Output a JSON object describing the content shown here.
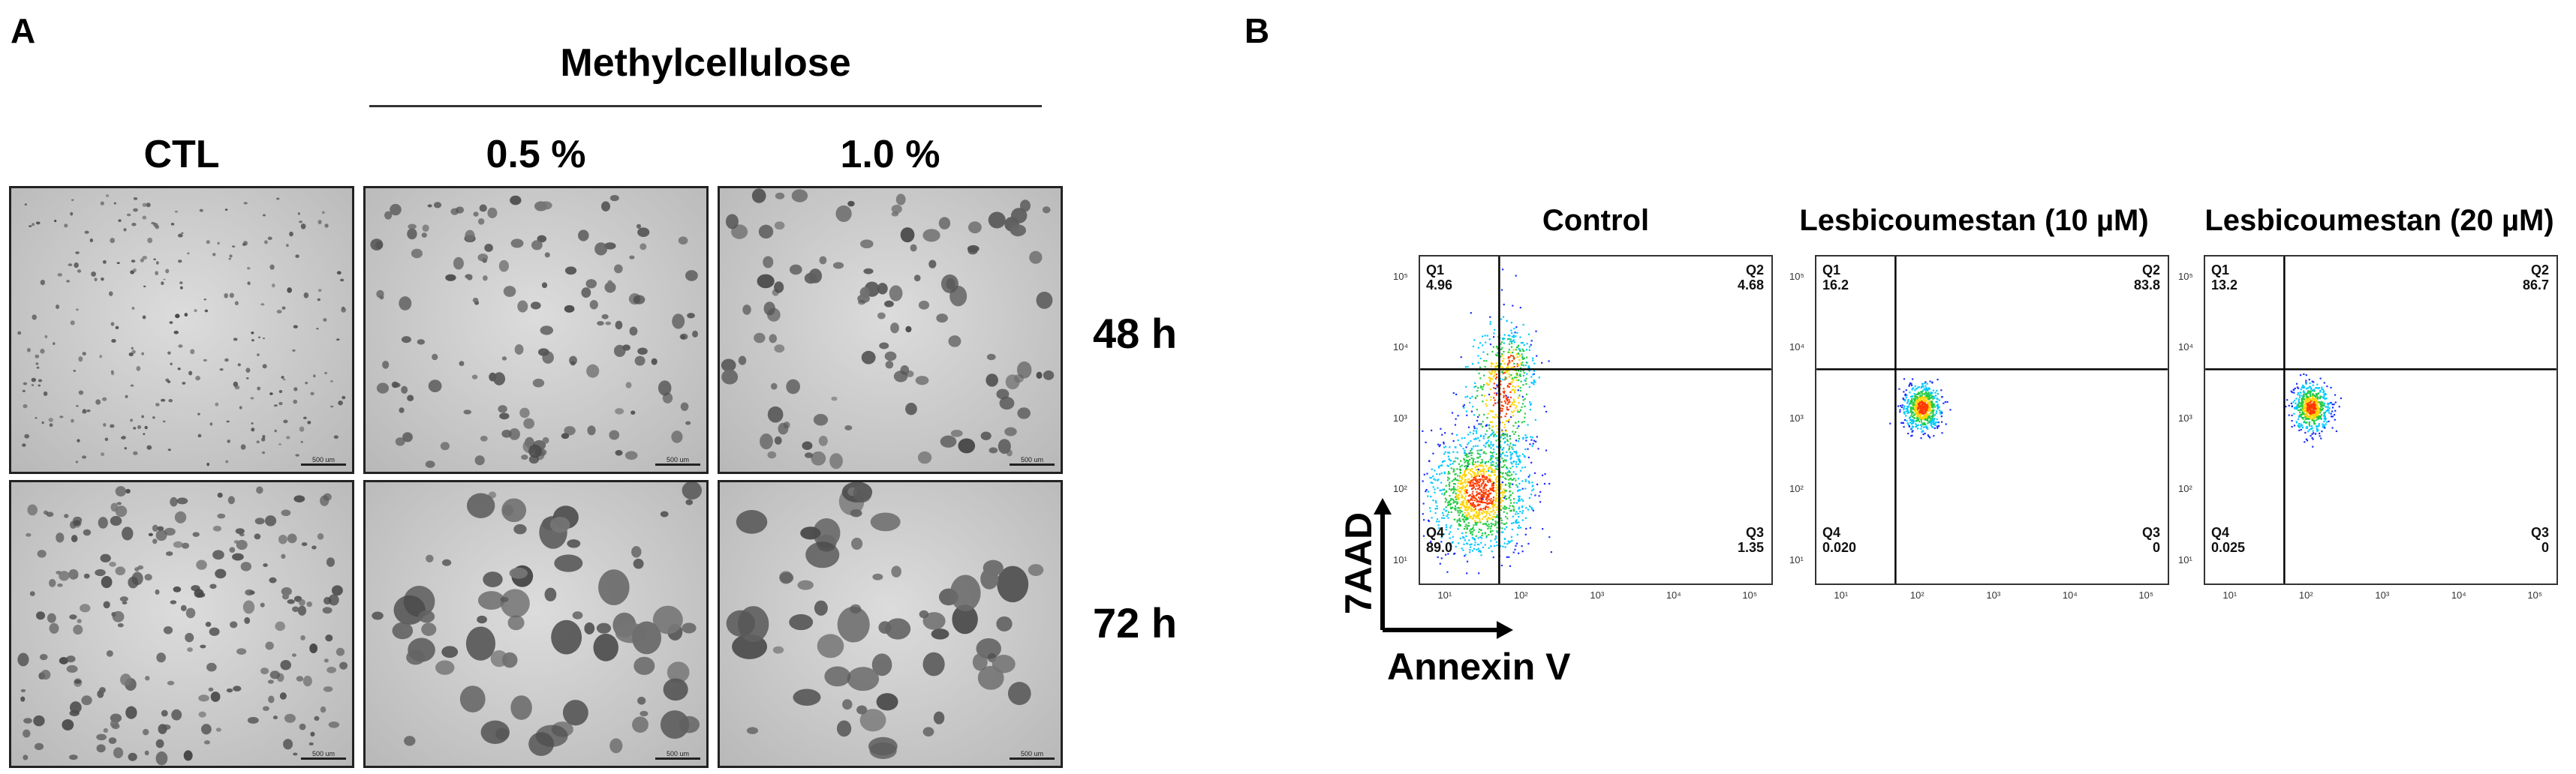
{
  "panel_a": {
    "letter": "A",
    "header": "Methylcellulose",
    "columns": [
      "CTL",
      "0.5 %",
      "1.0 %"
    ],
    "rows": [
      "48 h",
      "72 h"
    ],
    "scale_bar": "500 um"
  },
  "panel_b": {
    "letter": "B",
    "y_axis": "7AAD",
    "x_axis": "Annexin V",
    "tick_labels": [
      "10¹",
      "10²",
      "10³",
      "10⁴",
      "10⁵"
    ],
    "plots": [
      {
        "title": "Control",
        "q1_label": "Q1",
        "q1": "4.96",
        "q2_label": "Q2",
        "q2": "4.68",
        "q3_label": "Q3",
        "q3": "1.35",
        "q4_label": "Q4",
        "q4": "89.0"
      },
      {
        "title": "Lesbicoumestan (10 µM)",
        "q1_label": "Q1",
        "q1": "16.2",
        "q2_label": "Q2",
        "q2": "83.8",
        "q3_label": "Q3",
        "q3": "0",
        "q4_label": "Q4",
        "q4": "0.020"
      },
      {
        "title": "Lesbicoumestan (20 µM)",
        "q1_label": "Q1",
        "q1": "13.2",
        "q2_label": "Q2",
        "q2": "86.7",
        "q3_label": "Q3",
        "q3": "0",
        "q4_label": "Q4",
        "q4": "0.025"
      }
    ]
  }
}
